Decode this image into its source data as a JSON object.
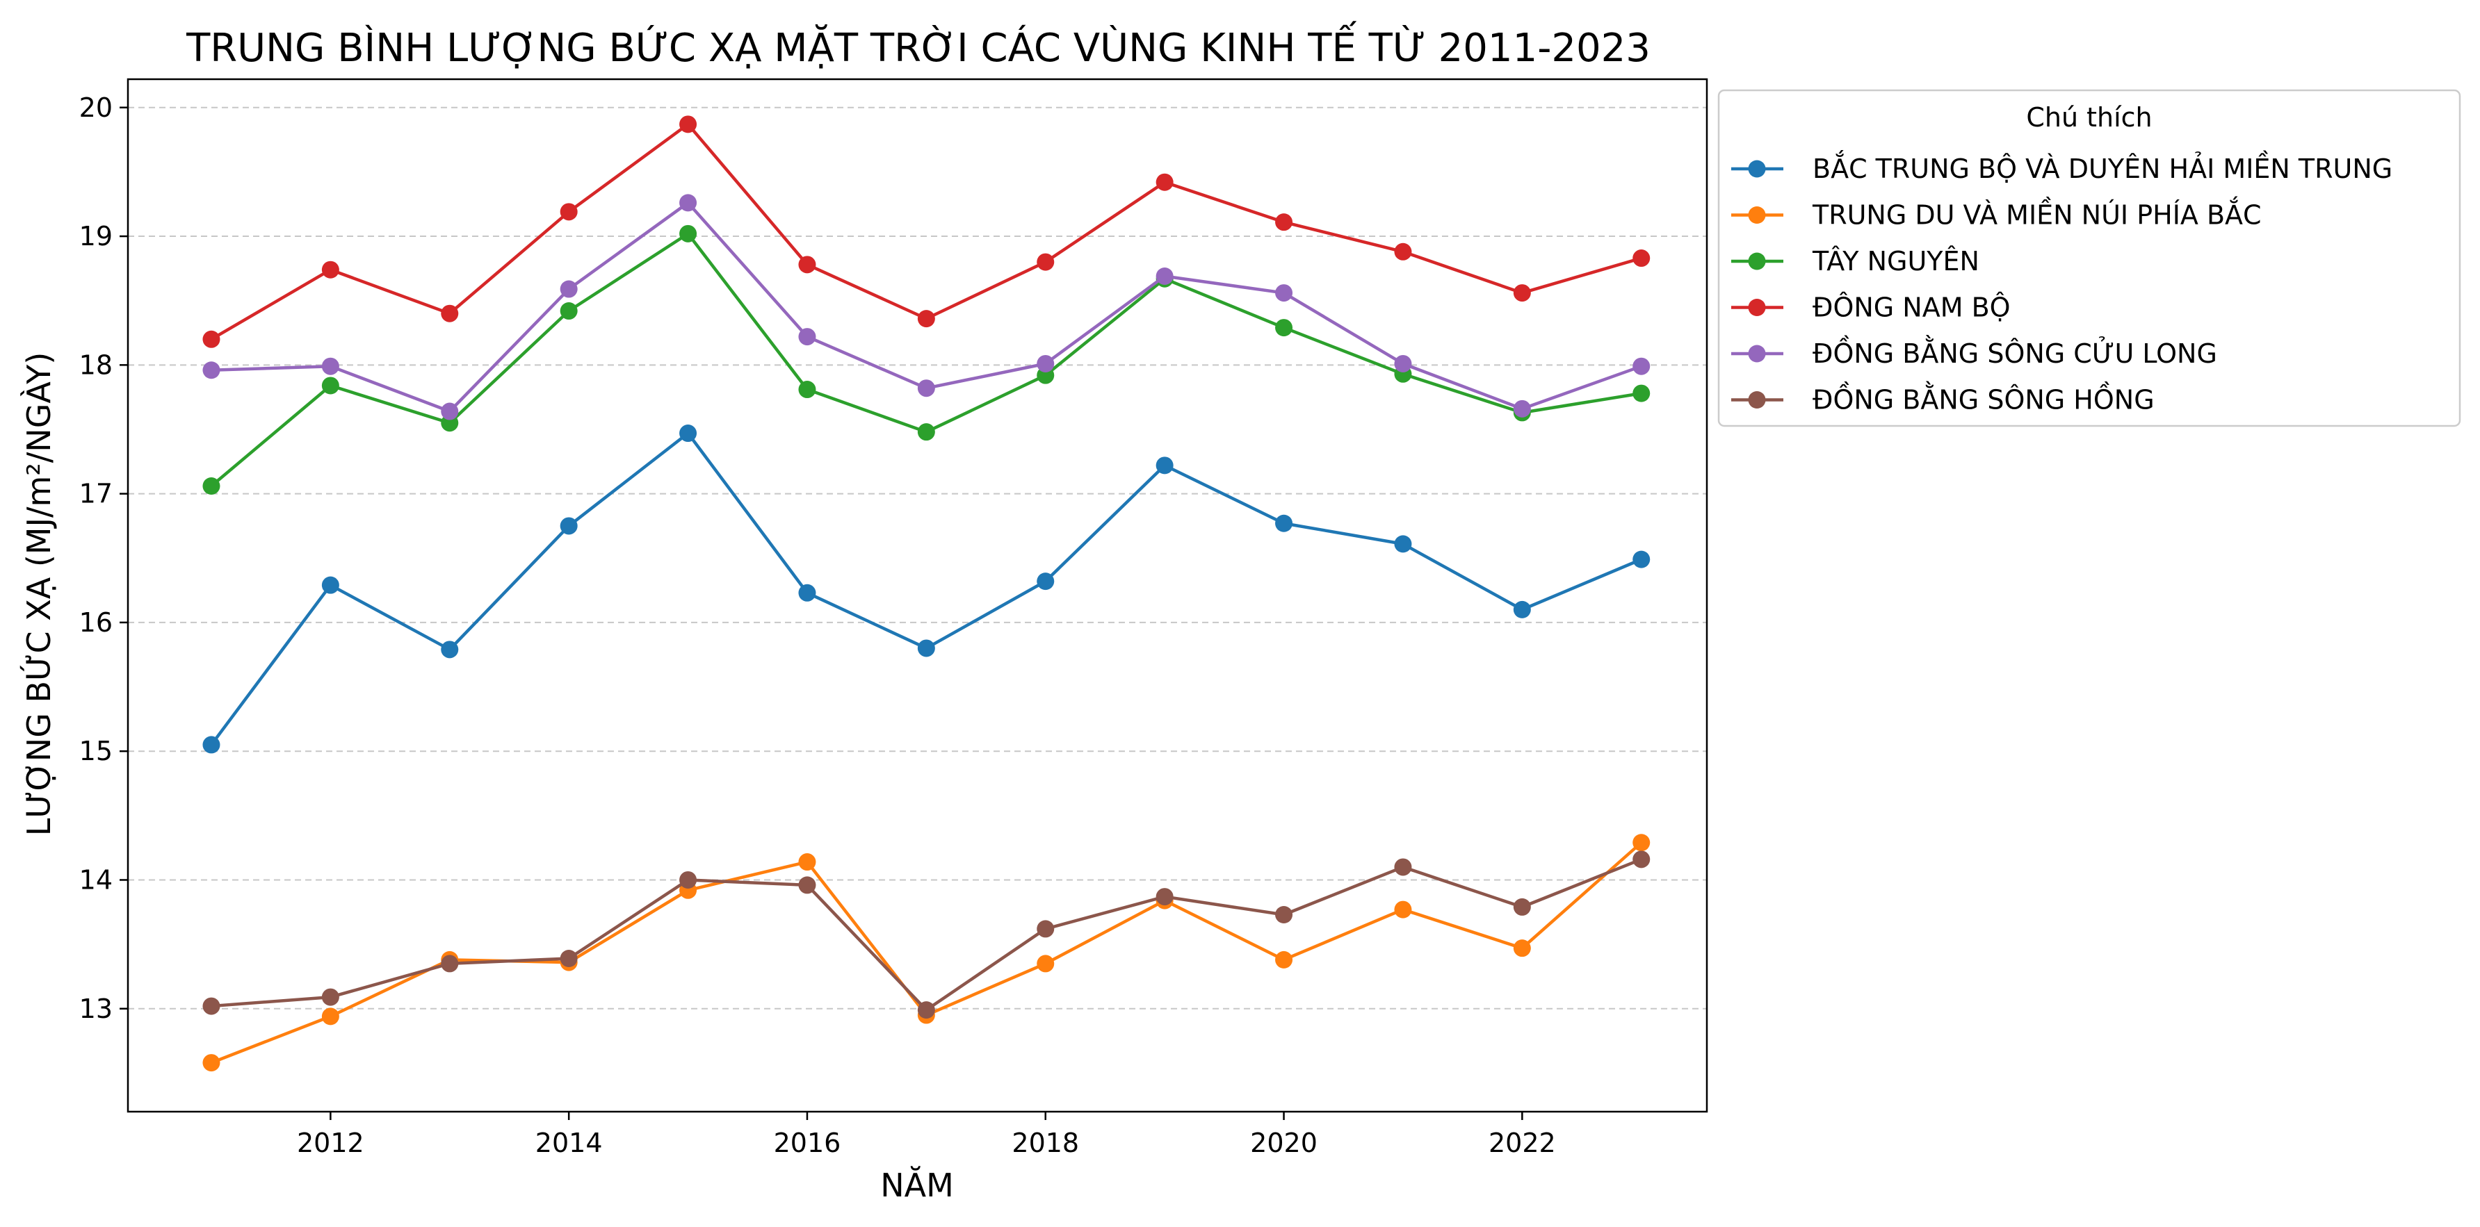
{
  "chart_data": {
    "type": "line",
    "title": "TRUNG BÌNH LƯỢNG BỨC XẠ MẶT TRỜI CÁC VÙNG KINH TẾ TỪ 2011-2023",
    "xlabel": "NĂM",
    "ylabel": "LƯỢNG BỨC XẠ (MJ/m²/NGÀY)",
    "x": [
      2011,
      2012,
      2013,
      2014,
      2015,
      2016,
      2017,
      2018,
      2019,
      2020,
      2021,
      2022,
      2023
    ],
    "xlim": [
      2010.3,
      2023.55
    ],
    "ylim": [
      12.2,
      20.22
    ],
    "x_ticks": [
      "2012",
      "2014",
      "2016",
      "2018",
      "2020",
      "2022"
    ],
    "y_ticks": [
      "13",
      "14",
      "15",
      "16",
      "17",
      "18",
      "19",
      "20"
    ],
    "grid": "y-dashed",
    "legend": {
      "title": "Chú thích",
      "placement": "outside-top-right"
    },
    "series": [
      {
        "name": "BẮC TRUNG BỘ VÀ DUYÊN HẢI MIỀN TRUNG",
        "color": "#1f77b4",
        "values": [
          15.05,
          16.29,
          15.79,
          16.75,
          17.47,
          16.23,
          15.8,
          16.32,
          17.22,
          16.77,
          16.61,
          16.1,
          16.49
        ]
      },
      {
        "name": "TRUNG DU VÀ MIỀN NÚI PHÍA BẮC",
        "color": "#ff7f0e",
        "values": [
          12.58,
          12.94,
          13.38,
          13.36,
          13.92,
          14.14,
          12.95,
          13.35,
          13.84,
          13.38,
          13.77,
          13.47,
          14.29
        ]
      },
      {
        "name": "TÂY NGUYÊN",
        "color": "#2ca02c",
        "values": [
          17.06,
          17.84,
          17.55,
          18.42,
          19.02,
          17.81,
          17.48,
          17.92,
          18.67,
          18.29,
          17.93,
          17.63,
          17.78
        ]
      },
      {
        "name": "ĐÔNG NAM BỘ",
        "color": "#d62728",
        "values": [
          18.2,
          18.74,
          18.4,
          19.19,
          19.87,
          18.78,
          18.36,
          18.8,
          19.42,
          19.11,
          18.88,
          18.56,
          18.83
        ]
      },
      {
        "name": "ĐỒNG BẰNG SÔNG CỬU LONG",
        "color": "#9467bd",
        "values": [
          17.96,
          17.99,
          17.64,
          18.59,
          19.26,
          18.22,
          17.82,
          18.01,
          18.69,
          18.56,
          18.01,
          17.66,
          17.99
        ]
      },
      {
        "name": "ĐỒNG BẰNG SÔNG HỒNG",
        "color": "#8c564b",
        "values": [
          13.02,
          13.09,
          13.35,
          13.39,
          14.0,
          13.96,
          12.99,
          13.62,
          13.87,
          13.73,
          14.1,
          13.79,
          14.16
        ]
      }
    ]
  }
}
